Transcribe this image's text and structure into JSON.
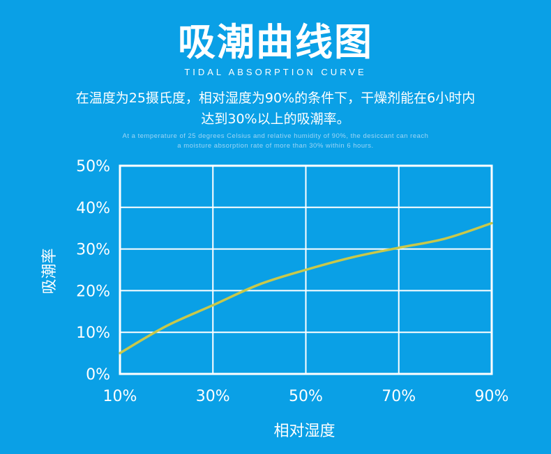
{
  "header": {
    "title": "吸潮曲线图",
    "subtitle_en": "TIDAL ABSORPTION CURVE",
    "description_cn_line1": "在温度为25摄氏度，相对湿度为90%的条件下，干燥剂能在6小时内",
    "description_cn_line2": "达到30%以上的吸潮率。",
    "description_en_line1": "At a temperature of 25 degrees Celsius and relative humidity of 90%, the desiccant can reach",
    "description_en_line2": "a moisture absorption rate of more than 30% within 6 hours."
  },
  "chart_data": {
    "type": "line",
    "title": "吸潮曲线图",
    "xlabel": "相对湿度",
    "ylabel": "吸潮率",
    "x_ticks": [
      "10%",
      "30%",
      "50%",
      "70%",
      "90%"
    ],
    "y_ticks": [
      "0%",
      "10%",
      "20%",
      "30%",
      "40%",
      "50%"
    ],
    "xlim": [
      10,
      90
    ],
    "ylim": [
      0,
      50
    ],
    "grid": true,
    "series": [
      {
        "x": [
          10,
          20,
          30,
          40,
          50,
          60,
          70,
          80,
          90
        ],
        "y": [
          5,
          11.5,
          16.5,
          21.5,
          25,
          28,
          30.3,
          32.5,
          36.2
        ]
      }
    ],
    "colors": {
      "background": "#0aa0e6",
      "grid": "#ffffff",
      "curve": "#c9c84a"
    }
  }
}
